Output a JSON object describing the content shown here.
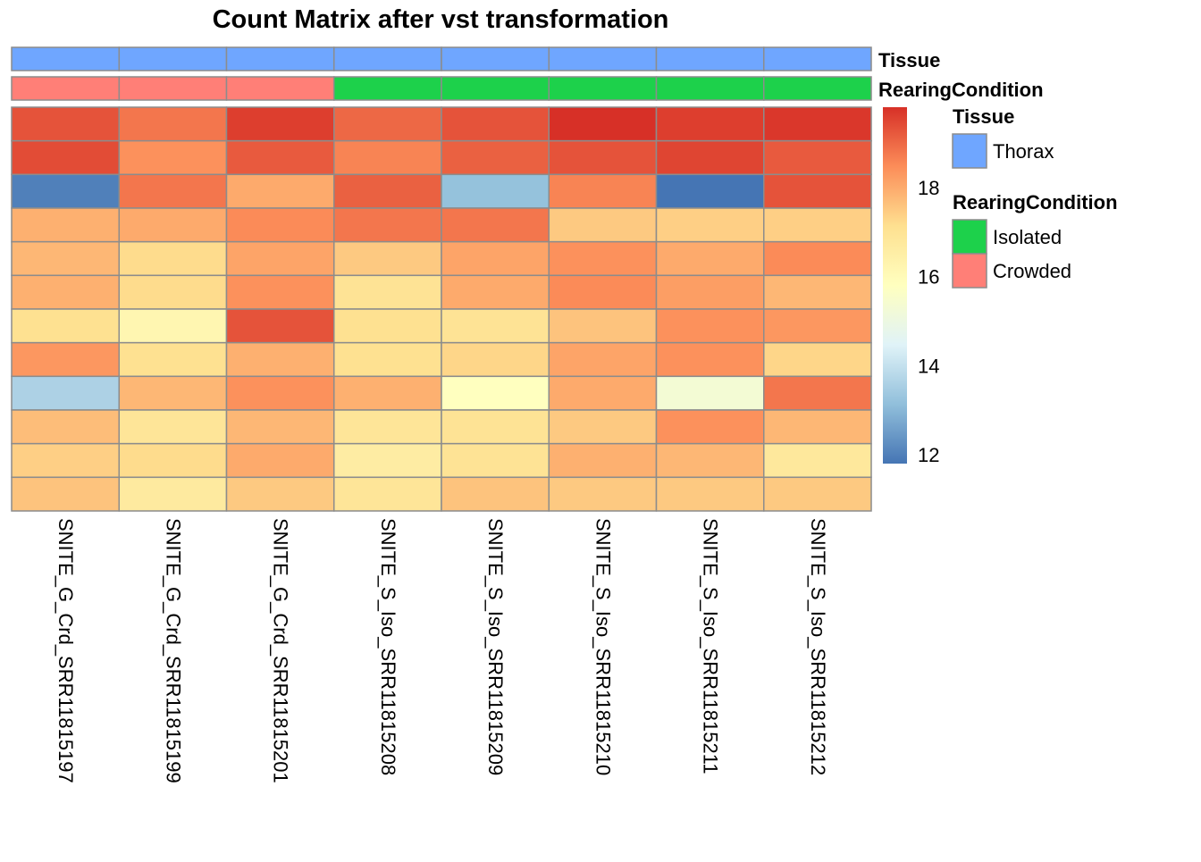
{
  "chart_data": {
    "type": "heatmap",
    "title": "Count Matrix after vst transformation",
    "columns": [
      "SNITE_G_Crd_SRR11815197",
      "SNITE_G_Crd_SRR11815199",
      "SNITE_G_Crd_SRR11815201",
      "SNITE_S_Iso_SRR11815208",
      "SNITE_S_Iso_SRR11815209",
      "SNITE_S_Iso_SRR11815210",
      "SNITE_S_Iso_SRR11815211",
      "SNITE_S_Iso_SRR11815212"
    ],
    "values": [
      [
        19.3,
        18.8,
        19.6,
        19.0,
        19.3,
        19.8,
        19.6,
        19.7
      ],
      [
        19.4,
        18.4,
        19.2,
        18.6,
        19.1,
        19.3,
        19.5,
        19.2
      ],
      [
        12.0,
        18.8,
        18.0,
        19.1,
        13.2,
        18.6,
        11.8,
        19.3
      ],
      [
        17.9,
        18.0,
        18.5,
        18.8,
        18.8,
        17.5,
        17.4,
        17.4
      ],
      [
        17.8,
        17.2,
        18.1,
        17.5,
        18.1,
        18.4,
        18.0,
        18.5
      ],
      [
        17.9,
        17.2,
        18.4,
        17.0,
        18.0,
        18.5,
        18.2,
        17.8
      ],
      [
        17.1,
        16.2,
        19.3,
        17.1,
        17.0,
        17.6,
        18.4,
        18.3
      ],
      [
        18.3,
        17.1,
        17.9,
        17.1,
        17.3,
        18.1,
        18.4,
        17.3
      ],
      [
        13.6,
        17.8,
        18.4,
        17.9,
        15.8,
        18.0,
        15.3,
        18.8
      ],
      [
        17.7,
        16.9,
        17.8,
        16.9,
        17.0,
        17.5,
        18.4,
        17.8
      ],
      [
        17.4,
        17.2,
        18.0,
        16.6,
        17.0,
        17.9,
        17.8,
        16.8
      ],
      [
        17.6,
        16.7,
        17.5,
        16.9,
        17.6,
        17.5,
        17.5,
        17.5
      ]
    ],
    "color_scale": {
      "range": [
        11.8,
        19.8
      ],
      "colors": [
        "#4575B4",
        "#91BFDB",
        "#E0F3F8",
        "#FFFFBF",
        "#FEE090",
        "#FC8D59",
        "#D73027"
      ],
      "ticks": [
        12,
        14,
        16,
        18
      ]
    },
    "annotations": [
      {
        "name": "Tissue",
        "values": [
          "Thorax",
          "Thorax",
          "Thorax",
          "Thorax",
          "Thorax",
          "Thorax",
          "Thorax",
          "Thorax"
        ],
        "legend": [
          {
            "label": "Thorax",
            "color": "#6FA6FF"
          }
        ]
      },
      {
        "name": "RearingCondition",
        "values": [
          "Crowded",
          "Crowded",
          "Crowded",
          "Isolated",
          "Isolated",
          "Isolated",
          "Isolated",
          "Isolated"
        ],
        "legend": [
          {
            "label": "Isolated",
            "color": "#1DD14B"
          },
          {
            "label": "Crowded",
            "color": "#FF7F77"
          }
        ]
      }
    ],
    "grid": true,
    "legend_placement": "right"
  }
}
